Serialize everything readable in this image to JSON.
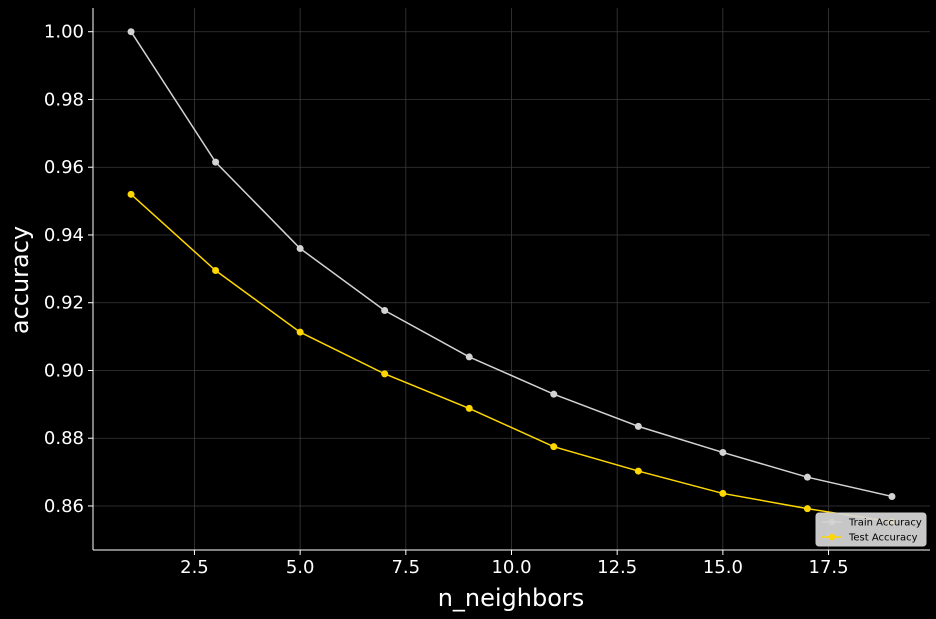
{
  "chart_data": {
    "type": "line",
    "title": "",
    "xlabel": "n_neighbors",
    "ylabel": "accuracy",
    "xlim": [
      0.1,
      19.9
    ],
    "ylim": [
      0.847,
      1.007
    ],
    "grid": true,
    "legend_position": "bottom-right",
    "x": [
      1,
      3,
      5,
      7,
      9,
      11,
      13,
      15,
      17,
      19
    ],
    "x_ticks": [
      2.5,
      5.0,
      7.5,
      10.0,
      12.5,
      15.0,
      17.5
    ],
    "x_tick_labels": [
      "2.5",
      "5.0",
      "7.5",
      "10.0",
      "12.5",
      "15.0",
      "17.5"
    ],
    "y_ticks": [
      0.86,
      0.88,
      0.9,
      0.92,
      0.94,
      0.96,
      0.98,
      1.0
    ],
    "y_tick_labels": [
      "0.86",
      "0.88",
      "0.90",
      "0.92",
      "0.94",
      "0.96",
      "0.98",
      "1.00"
    ],
    "series": [
      {
        "name": "Train Accuracy",
        "color": "#d3d3d3",
        "values": [
          1.0,
          0.9615,
          0.936,
          0.9177,
          0.904,
          0.893,
          0.8835,
          0.8758,
          0.8685,
          0.8628
        ]
      },
      {
        "name": "Test Accuracy",
        "color": "#ffd700",
        "values": [
          0.952,
          0.9295,
          0.9113,
          0.899,
          0.8888,
          0.8775,
          0.8703,
          0.8637,
          0.8592,
          0.8553
        ]
      }
    ]
  }
}
